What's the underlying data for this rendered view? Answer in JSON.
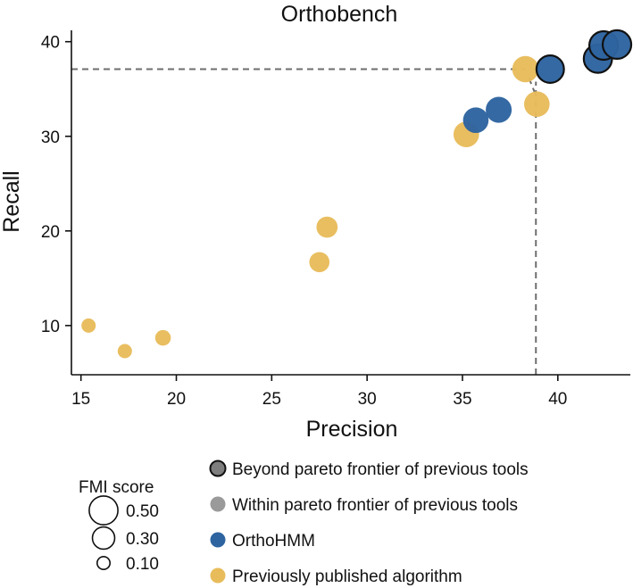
{
  "chart_data": {
    "type": "scatter",
    "title": "Orthobench",
    "xlabel": "Precision",
    "ylabel": "Recall",
    "xlim": [
      14.5,
      43.8
    ],
    "ylim": [
      4.8,
      41.2
    ],
    "xticks": [
      15,
      20,
      25,
      30,
      35,
      40
    ],
    "yticks": [
      10,
      20,
      30,
      40
    ],
    "xtick_labels": [
      "15",
      "20",
      "25",
      "30",
      "35",
      "40"
    ],
    "ytick_labels": [
      "10",
      "20",
      "30",
      "40"
    ],
    "grid": false,
    "colors": {
      "previous": "#E8BC5B",
      "orthohmm": "#2E64A0",
      "beyond_legend_fill": "#7E7E7E",
      "within_legend_fill": "#9A9A9A",
      "outline": "#111111",
      "reference": "#6E6E6E"
    },
    "reference_lines": {
      "precision": 38.85,
      "recall": 37.1
    },
    "series": [
      {
        "name": "Previously published algorithm",
        "color": "#E8BC5B",
        "points": [
          {
            "x": 15.4,
            "y": 10.0,
            "fmi": 0.1
          },
          {
            "x": 17.3,
            "y": 7.3,
            "fmi": 0.1
          },
          {
            "x": 19.3,
            "y": 8.7,
            "fmi": 0.12
          },
          {
            "x": 27.5,
            "y": 16.7,
            "fmi": 0.2
          },
          {
            "x": 27.9,
            "y": 20.4,
            "fmi": 0.22
          },
          {
            "x": 35.2,
            "y": 30.2,
            "fmi": 0.32
          },
          {
            "x": 38.3,
            "y": 37.1,
            "fmi": 0.34
          },
          {
            "x": 38.9,
            "y": 33.4,
            "fmi": 0.32
          }
        ]
      },
      {
        "name": "OrthoHMM",
        "color": "#2E64A0",
        "points": [
          {
            "x": 35.7,
            "y": 31.7,
            "fmi": 0.32
          },
          {
            "x": 36.9,
            "y": 32.8,
            "fmi": 0.33
          },
          {
            "x": 39.6,
            "y": 37.1,
            "fmi": 0.37,
            "beyond": true
          },
          {
            "x": 42.1,
            "y": 38.2,
            "fmi": 0.39,
            "beyond": true
          },
          {
            "x": 42.4,
            "y": 39.6,
            "fmi": 0.4,
            "beyond": true
          },
          {
            "x": 43.1,
            "y": 39.7,
            "fmi": 0.4,
            "beyond": true
          }
        ]
      }
    ],
    "size_legend": {
      "title": "FMI score",
      "entries": [
        {
          "label": "0.50",
          "value": 0.5
        },
        {
          "label": "0.30",
          "value": 0.3
        },
        {
          "label": "0.10",
          "value": 0.1
        }
      ]
    },
    "legend": [
      {
        "label": "Beyond pareto frontier of previous tools",
        "key": "beyond"
      },
      {
        "label": "Within pareto frontier of previous tools",
        "key": "within"
      },
      {
        "label": "OrthoHMM",
        "key": "orthohmm"
      },
      {
        "label": "Previously published algorithm",
        "key": "previous"
      }
    ]
  }
}
